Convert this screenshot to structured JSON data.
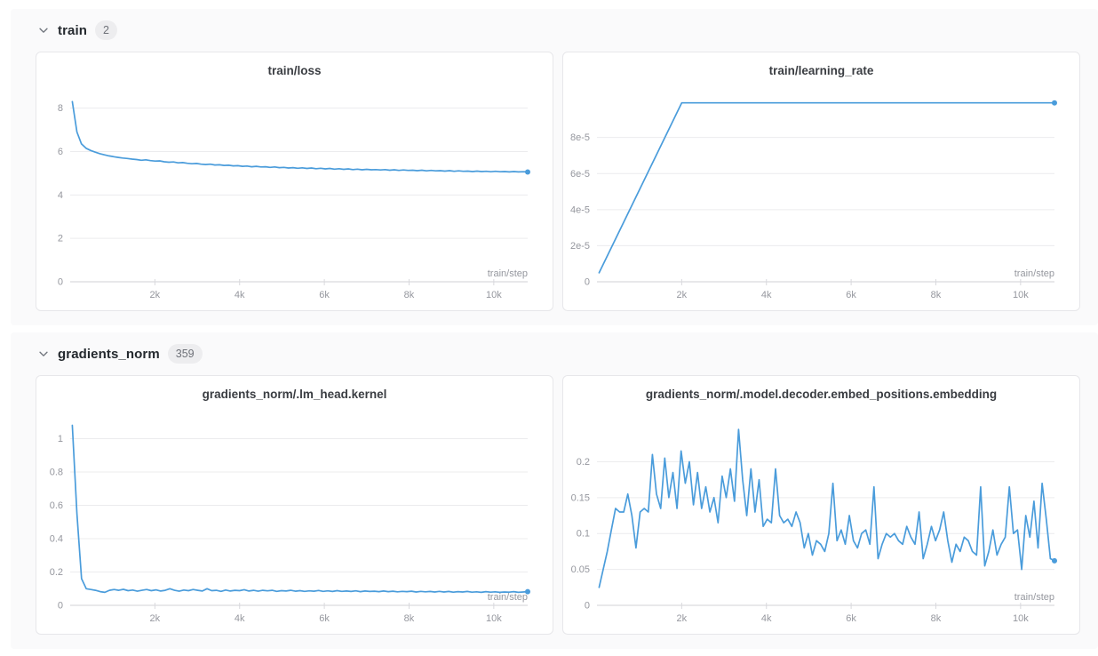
{
  "colors": {
    "accent": "#4a9cdb",
    "grid": "#ececee",
    "axis": "#d9d9dd",
    "tick_text": "#95979e"
  },
  "sections": [
    {
      "title": "train",
      "count": "2",
      "chevron": "chevron-down"
    },
    {
      "title": "gradients_norm",
      "count": "359",
      "chevron": "chevron-down"
    }
  ],
  "chart_data": [
    {
      "type": "line",
      "title": "train/loss",
      "xlabel": "train/step",
      "xlim": [
        0,
        10800
      ],
      "ylim": [
        0,
        8.6
      ],
      "xticks": [
        2000,
        4000,
        6000,
        8000,
        10000
      ],
      "xtick_labels": [
        "2k",
        "4k",
        "6k",
        "8k",
        "10k"
      ],
      "yticks": [
        0,
        2,
        4,
        6,
        8
      ],
      "ytick_labels": [
        "0",
        "2",
        "4",
        "6",
        "8"
      ],
      "grid": "horizontal",
      "x_range": [
        50,
        10800
      ],
      "values": [
        8.3,
        6.9,
        6.35,
        6.15,
        6.05,
        5.97,
        5.9,
        5.85,
        5.8,
        5.76,
        5.73,
        5.7,
        5.68,
        5.65,
        5.63,
        5.6,
        5.62,
        5.58,
        5.56,
        5.57,
        5.53,
        5.51,
        5.52,
        5.48,
        5.49,
        5.46,
        5.44,
        5.45,
        5.42,
        5.4,
        5.42,
        5.38,
        5.39,
        5.36,
        5.37,
        5.34,
        5.35,
        5.32,
        5.33,
        5.3,
        5.32,
        5.29,
        5.3,
        5.27,
        5.29,
        5.26,
        5.27,
        5.24,
        5.26,
        5.23,
        5.25,
        5.22,
        5.24,
        5.21,
        5.23,
        5.2,
        5.22,
        5.19,
        5.21,
        5.18,
        5.2,
        5.17,
        5.19,
        5.16,
        5.18,
        5.16,
        5.17,
        5.15,
        5.17,
        5.14,
        5.16,
        5.13,
        5.15,
        5.13,
        5.14,
        5.12,
        5.14,
        5.11,
        5.13,
        5.11,
        5.12,
        5.1,
        5.12,
        5.09,
        5.11,
        5.09,
        5.1,
        5.08,
        5.1,
        5.08,
        5.09,
        5.07,
        5.09,
        5.07,
        5.08,
        5.06,
        5.08,
        5.06,
        5.07,
        5.06
      ]
    },
    {
      "type": "line",
      "title": "train/learning_rate",
      "xlabel": "train/step",
      "xlim": [
        0,
        10800
      ],
      "ylim": [
        0,
        0.0001035
      ],
      "xticks": [
        2000,
        4000,
        6000,
        8000,
        10000
      ],
      "xtick_labels": [
        "2k",
        "4k",
        "6k",
        "8k",
        "10k"
      ],
      "yticks": [
        0,
        2e-05,
        4e-05,
        6e-05,
        8e-05
      ],
      "ytick_labels": [
        "0",
        "2e-5",
        "4e-5",
        "6e-5",
        "8e-5"
      ],
      "grid": "horizontal",
      "points": [
        [
          50,
          5e-06
        ],
        [
          2000,
          9.92e-05
        ],
        [
          10800,
          9.92e-05
        ]
      ]
    },
    {
      "type": "line",
      "title": "gradients_norm/.lm_head.kernel",
      "xlabel": "train/step",
      "xlim": [
        0,
        10800
      ],
      "ylim": [
        0,
        1.12
      ],
      "xticks": [
        2000,
        4000,
        6000,
        8000,
        10000
      ],
      "xtick_labels": [
        "2k",
        "4k",
        "6k",
        "8k",
        "10k"
      ],
      "yticks": [
        0,
        0.2,
        0.4,
        0.6,
        0.8,
        1
      ],
      "ytick_labels": [
        "0",
        "0.2",
        "0.4",
        "0.6",
        "0.8",
        "1"
      ],
      "grid": "horizontal",
      "x_range": [
        50,
        10800
      ],
      "values": [
        1.08,
        0.55,
        0.16,
        0.1,
        0.095,
        0.09,
        0.082,
        0.078,
        0.09,
        0.095,
        0.09,
        0.096,
        0.088,
        0.092,
        0.085,
        0.09,
        0.095,
        0.088,
        0.093,
        0.086,
        0.09,
        0.1,
        0.09,
        0.085,
        0.092,
        0.088,
        0.095,
        0.09,
        0.086,
        0.1,
        0.088,
        0.09,
        0.084,
        0.092,
        0.086,
        0.09,
        0.088,
        0.094,
        0.086,
        0.09,
        0.085,
        0.09,
        0.087,
        0.09,
        0.084,
        0.088,
        0.086,
        0.09,
        0.085,
        0.088,
        0.084,
        0.087,
        0.085,
        0.089,
        0.084,
        0.087,
        0.083,
        0.088,
        0.084,
        0.086,
        0.083,
        0.087,
        0.082,
        0.086,
        0.083,
        0.085,
        0.082,
        0.086,
        0.082,
        0.085,
        0.081,
        0.084,
        0.082,
        0.085,
        0.08,
        0.084,
        0.081,
        0.083,
        0.08,
        0.084,
        0.08,
        0.083,
        0.079,
        0.082,
        0.08,
        0.083,
        0.079,
        0.081,
        0.078,
        0.082,
        0.079,
        0.081,
        0.078,
        0.08,
        0.079,
        0.082,
        0.078,
        0.08,
        0.082
      ]
    },
    {
      "type": "line",
      "title": "gradients_norm/.model.decoder.embed_positions.embedding",
      "xlabel": "train/step",
      "xlim": [
        0,
        10800
      ],
      "ylim": [
        0,
        0.26
      ],
      "xticks": [
        2000,
        4000,
        6000,
        8000,
        10000
      ],
      "xtick_labels": [
        "2k",
        "4k",
        "6k",
        "8k",
        "10k"
      ],
      "yticks": [
        0,
        0.05,
        0.1,
        0.15,
        0.2
      ],
      "ytick_labels": [
        "0",
        "0.05",
        "0.1",
        "0.15",
        "0.2"
      ],
      "grid": "horizontal",
      "x_range": [
        50,
        10800
      ],
      "values": [
        0.025,
        0.05,
        0.075,
        0.105,
        0.135,
        0.13,
        0.13,
        0.155,
        0.125,
        0.08,
        0.13,
        0.135,
        0.13,
        0.21,
        0.155,
        0.135,
        0.205,
        0.15,
        0.185,
        0.135,
        0.215,
        0.17,
        0.2,
        0.14,
        0.185,
        0.135,
        0.165,
        0.13,
        0.15,
        0.115,
        0.18,
        0.15,
        0.19,
        0.145,
        0.245,
        0.175,
        0.125,
        0.19,
        0.13,
        0.175,
        0.11,
        0.12,
        0.115,
        0.19,
        0.125,
        0.115,
        0.12,
        0.11,
        0.13,
        0.115,
        0.08,
        0.1,
        0.07,
        0.09,
        0.085,
        0.075,
        0.1,
        0.17,
        0.09,
        0.105,
        0.085,
        0.125,
        0.09,
        0.08,
        0.1,
        0.105,
        0.085,
        0.165,
        0.065,
        0.085,
        0.1,
        0.095,
        0.1,
        0.09,
        0.085,
        0.11,
        0.095,
        0.085,
        0.13,
        0.065,
        0.085,
        0.11,
        0.09,
        0.105,
        0.13,
        0.09,
        0.06,
        0.085,
        0.075,
        0.095,
        0.09,
        0.075,
        0.07,
        0.165,
        0.055,
        0.075,
        0.105,
        0.07,
        0.085,
        0.095,
        0.165,
        0.1,
        0.105,
        0.05,
        0.125,
        0.095,
        0.145,
        0.08,
        0.17,
        0.12,
        0.065,
        0.062
      ]
    }
  ]
}
